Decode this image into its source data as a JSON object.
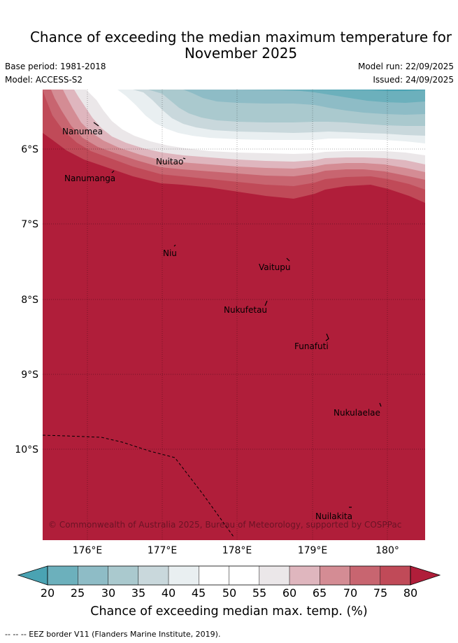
{
  "header": {
    "title_line1": "Chance of exceeding the median maximum temperature for",
    "title_line2": "November 2025",
    "base_period": "Base period: 1981-2018",
    "model": "Model: ACCESS-S2",
    "model_run": "Model run: 22/09/2025",
    "issued": "Issued: 24/09/2025"
  },
  "map": {
    "lon_ticks": [
      "176°E",
      "177°E",
      "178°E",
      "179°E",
      "180°"
    ],
    "lat_ticks": [
      "6°S",
      "7°S",
      "8°S",
      "9°S",
      "10°S"
    ],
    "places": {
      "nanumea": "Nanumea",
      "nanumanga": "Nanumanga",
      "nuitao": "Nuitao",
      "niu": "Niu",
      "vaitupu": "Vaitupu",
      "nukufetau": "Nukufetau",
      "funafuti": "Funafuti",
      "nukulaelae": "Nukulaelae",
      "nuilakita": "Nuilakita"
    },
    "copyright": "© Commonwealth of Australia 2025, Bureau of Meteorology, supported by COSPPac"
  },
  "colorbar": {
    "ticks": [
      "20",
      "25",
      "30",
      "35",
      "40",
      "45",
      "50",
      "55",
      "60",
      "65",
      "70",
      "75",
      "80"
    ],
    "colors": {
      "under": "#4aa3b3",
      "c20_25": "#6cb0bc",
      "c25_30": "#8ebcc6",
      "c30_35": "#aac9ce",
      "c35_40": "#c9d8dc",
      "c40_45": "#e9eff1",
      "c45_50": "#ffffff",
      "c50_55": "#ffffff",
      "c55_60": "#ebe7e9",
      "c60_65": "#dfb6be",
      "c65_70": "#d48c94",
      "c70_75": "#c86570",
      "c75_80": "#c04a58",
      "over": "#b01e3a"
    },
    "label": "Chance of exceeding median max. temp. (%)"
  },
  "footnote": "--  --  -- EEZ border V11 (Flanders Marine Institute, 2019)."
}
